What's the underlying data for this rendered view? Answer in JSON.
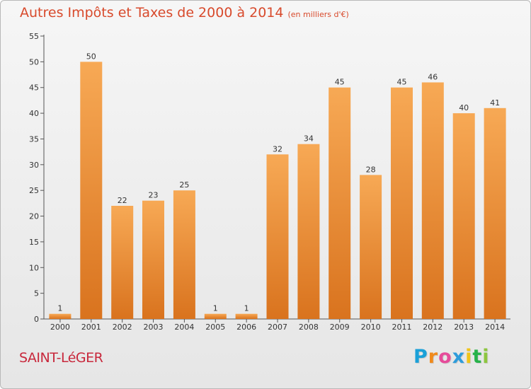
{
  "chart_data": {
    "type": "bar",
    "title": "Autres Impôts et Taxes de 2000 à 2014",
    "subtitle": "(en milliers d'€)",
    "categories": [
      "2000",
      "2001",
      "2002",
      "2003",
      "2004",
      "2005",
      "2006",
      "2007",
      "2008",
      "2009",
      "2010",
      "2011",
      "2012",
      "2013",
      "2014"
    ],
    "values": [
      1,
      50,
      22,
      23,
      25,
      1,
      1,
      32,
      34,
      45,
      28,
      45,
      46,
      40,
      41
    ],
    "ylim": [
      0,
      55
    ],
    "yticks": [
      0,
      5,
      10,
      15,
      20,
      25,
      30,
      35,
      40,
      45,
      50,
      55
    ],
    "grid": false,
    "data_labels": true,
    "colors": {
      "bar_top": "#f7a955",
      "bar_bottom": "#d9731e",
      "title": "#d84a2c"
    }
  },
  "footer": {
    "location": "SAINT-LéGER",
    "location_color": "#c8283c",
    "brand_letters": [
      {
        "ch": "P",
        "color": "#1aa0d8"
      },
      {
        "ch": "r",
        "color": "#f08a1c"
      },
      {
        "ch": "o",
        "color": "#e64b9a"
      },
      {
        "ch": "x",
        "color": "#2d9cdb"
      },
      {
        "ch": "i",
        "color": "#f0c419"
      },
      {
        "ch": "t",
        "color": "#27b24a"
      },
      {
        "ch": "i",
        "color": "#8dc63f"
      }
    ]
  }
}
